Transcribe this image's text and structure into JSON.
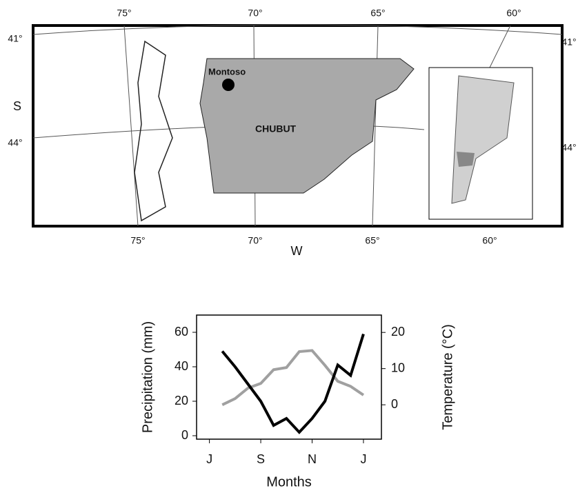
{
  "map": {
    "top_longitudes": [
      "75°",
      "70°",
      "65°",
      "60°"
    ],
    "bottom_longitudes": [
      "75°",
      "70°",
      "65°",
      "60°"
    ],
    "west_label": "W",
    "south_label": "S",
    "left_latitudes": [
      "41°",
      "44°"
    ],
    "right_latitudes": [
      "41°",
      "44°"
    ],
    "site": "Montoso",
    "province": "CHUBUT"
  },
  "chart_data": {
    "type": "line",
    "xlabel": "Months",
    "ylabel": "Precipitation (mm)",
    "y2label": "Temperature (°C)",
    "x": [
      0.5,
      1,
      1.5,
      2,
      2.5,
      3,
      3.5,
      4,
      4.5,
      5,
      5.5,
      6
    ],
    "xlim": [
      -0.5,
      6.7
    ],
    "xticks": [
      {
        "value": 0,
        "label": "J"
      },
      {
        "value": 2,
        "label": "S"
      },
      {
        "value": 4,
        "label": "N"
      },
      {
        "value": 6,
        "label": "J"
      }
    ],
    "ylim": [
      -2,
      70
    ],
    "yticks": [
      0,
      20,
      40,
      60
    ],
    "y2lim": [
      -9.5,
      24.8
    ],
    "y2ticks": [
      0,
      10,
      20
    ],
    "series": [
      {
        "name": "Precipitation",
        "color": "#000000",
        "values": [
          49,
          40,
          30,
          20,
          6,
          10,
          2,
          10,
          20,
          41,
          35,
          59
        ]
      },
      {
        "name": "Temperature",
        "color": "#a0a0a0",
        "axis": "y2",
        "values": [
          0,
          1.7,
          4.6,
          5.9,
          9.7,
          10.3,
          14.7,
          15,
          10.9,
          6.5,
          5.1,
          2.7
        ]
      }
    ]
  }
}
